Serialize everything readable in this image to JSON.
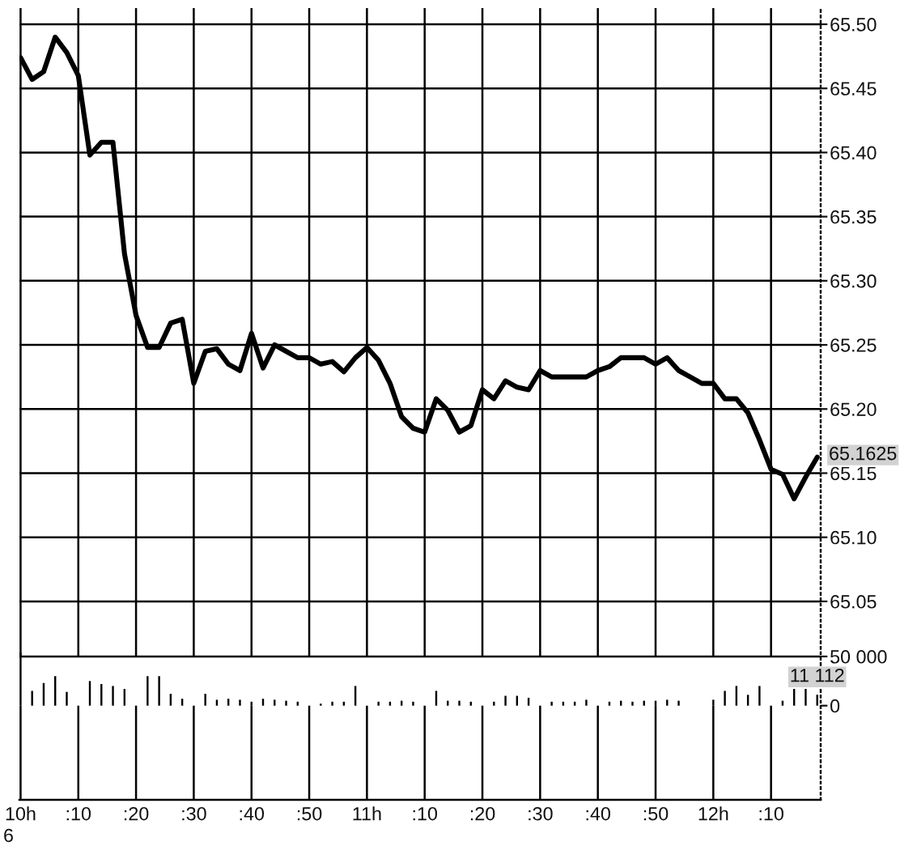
{
  "chart_data": {
    "type": "line",
    "line_style": "solid",
    "grid": true,
    "categories": [
      "10h",
      null,
      null,
      null,
      null,
      ":10",
      null,
      null,
      null,
      null,
      ":20",
      null,
      null,
      null,
      null,
      ":30",
      null,
      null,
      null,
      null,
      ":40",
      null,
      null,
      null,
      null,
      ":50",
      null,
      null,
      null,
      null,
      "11h",
      null,
      null,
      null,
      null,
      ":10",
      null,
      null,
      null,
      null,
      ":20",
      null,
      null,
      null,
      null,
      ":30",
      null,
      null,
      null,
      null,
      ":40",
      null,
      null,
      null,
      null,
      ":50",
      null,
      null,
      null,
      null,
      "12h",
      null,
      null,
      null,
      null,
      ":10",
      null,
      null,
      null,
      null
    ],
    "ylim": [
      64.8953,
      65.5126
    ],
    "yticks": [
      {
        "value": 65.5,
        "label": "65.50"
      },
      65.45,
      {
        "value": 65.4,
        "label": "65.40"
      },
      65.35,
      {
        "value": 65.3,
        "label": "65.30"
      },
      65.25,
      {
        "value": 65.2,
        "label": "65.20"
      },
      65.15,
      {
        "value": 65.1,
        "label": "65.10"
      },
      65.05
    ],
    "y2lim": [
      -95700,
      709000
    ],
    "y2ticks": [
      0,
      {
        "value": 50000,
        "label": "50 000"
      }
    ],
    "series": [
      {
        "color": "#000000",
        "values": [
          65.474,
          65.457,
          65.463,
          65.49,
          65.478,
          65.46,
          65.398,
          65.408,
          65.408,
          65.321,
          65.273,
          65.248,
          65.248,
          65.267,
          65.27,
          65.22,
          65.245,
          65.247,
          65.235,
          65.23,
          65.259,
          65.232,
          65.25,
          65.245,
          65.24,
          65.24,
          65.235,
          65.237,
          65.229,
          65.24,
          65.248,
          65.238,
          65.22,
          65.194,
          65.185,
          65.182,
          65.208,
          65.199,
          65.182,
          65.187,
          65.215,
          65.208,
          65.222,
          65.217,
          65.215,
          65.23,
          65.225,
          65.225,
          65.225,
          65.225,
          65.23,
          65.233,
          65.24,
          65.24,
          65.24,
          65.235,
          65.24,
          65.23,
          65.225,
          65.22,
          65.22,
          65.208,
          65.208,
          65.197,
          65.176,
          65.153,
          65.149,
          65.13,
          65.147,
          65.1625
        ],
        "value_labels": [
          null,
          null,
          null,
          null,
          null,
          null,
          null,
          null,
          null,
          null,
          null,
          null,
          null,
          null,
          null,
          null,
          null,
          null,
          null,
          null,
          null,
          null,
          null,
          null,
          null,
          null,
          null,
          null,
          null,
          null,
          null,
          null,
          null,
          null,
          null,
          null,
          null,
          null,
          null,
          null,
          null,
          null,
          null,
          null,
          null,
          null,
          null,
          null,
          null,
          null,
          null,
          null,
          null,
          null,
          null,
          null,
          null,
          null,
          null,
          null,
          null,
          null,
          null,
          null,
          null,
          null,
          null,
          null,
          null,
          "65.1625"
        ]
      },
      {
        "type": "bar",
        "axis": "y2",
        "color": "#000000",
        "values": [
          54000,
          15000,
          23000,
          30000,
          14000,
          null,
          25000,
          22000,
          20000,
          17000,
          null,
          30000,
          30000,
          12000,
          7000,
          null,
          12000,
          6000,
          7000,
          6000,
          4000,
          7000,
          6000,
          5000,
          4000,
          null,
          2000,
          4000,
          4000,
          20000,
          null,
          4000,
          4000,
          5000,
          4000,
          null,
          15000,
          5000,
          5000,
          4000,
          null,
          4000,
          10000,
          10000,
          8000,
          null,
          4000,
          4000,
          4000,
          6000,
          null,
          4000,
          5000,
          4000,
          5000,
          5000,
          6000,
          5000,
          null,
          null,
          6000,
          15000,
          20000,
          11000,
          20000,
          null,
          5000,
          17000,
          17000,
          11112
        ],
        "value_labels": [
          null,
          null,
          null,
          null,
          null,
          null,
          null,
          null,
          null,
          null,
          null,
          null,
          null,
          null,
          null,
          null,
          null,
          null,
          null,
          null,
          null,
          null,
          null,
          null,
          null,
          null,
          null,
          null,
          null,
          null,
          null,
          null,
          null,
          null,
          null,
          null,
          null,
          null,
          null,
          null,
          null,
          null,
          null,
          null,
          null,
          null,
          null,
          null,
          null,
          null,
          null,
          null,
          null,
          null,
          null,
          null,
          null,
          null,
          null,
          null,
          null,
          null,
          null,
          null,
          null,
          null,
          null,
          null,
          null,
          "11 112"
        ]
      }
    ],
    "annotations": [
      "6"
    ]
  }
}
